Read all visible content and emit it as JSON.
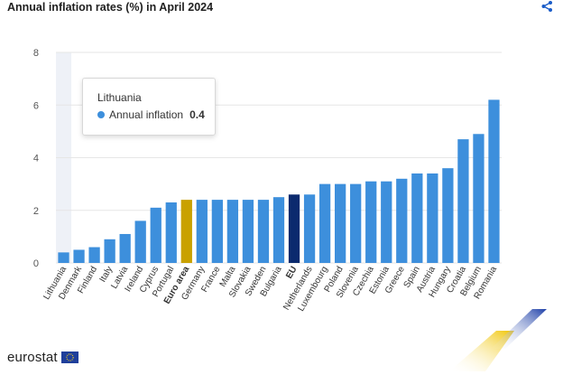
{
  "header": {
    "title": "Annual inflation rates (%) in April 2024"
  },
  "icons": {
    "share": "share-icon",
    "flag": "eu-flag-icon"
  },
  "colors": {
    "bar": "#3d8fdc",
    "euro_area": "#c9a100",
    "eu": "#0b2a6e",
    "highlight": "#eef1f7"
  },
  "tooltip": {
    "title": "Lithuania",
    "series_label": "Annual inflation",
    "value": "0.4"
  },
  "logo": {
    "text": "eurostat"
  },
  "chart_data": {
    "type": "bar",
    "title": "Annual inflation rates (%) in April 2024",
    "xlabel": "",
    "ylabel": "",
    "ylim": [
      0,
      8
    ],
    "yticks": [
      0,
      2,
      4,
      6,
      8
    ],
    "grid": true,
    "categories": [
      "Lithuania",
      "Denmark",
      "Finland",
      "Italy",
      "Latvia",
      "Ireland",
      "Cyprus",
      "Portugal",
      "Euro area",
      "Germany",
      "France",
      "Malta",
      "Slovakia",
      "Sweden",
      "Bulgaria",
      "EU",
      "Netherlands",
      "Luxembourg",
      "Poland",
      "Slovenia",
      "Czechia",
      "Estonia",
      "Greece",
      "Spain",
      "Austria",
      "Hungary",
      "Croatia",
      "Belgium",
      "Romania"
    ],
    "values": [
      0.4,
      0.5,
      0.6,
      0.9,
      1.1,
      1.6,
      2.1,
      2.3,
      2.4,
      2.4,
      2.4,
      2.4,
      2.4,
      2.4,
      2.5,
      2.6,
      2.6,
      3.0,
      3.0,
      3.0,
      3.1,
      3.1,
      3.2,
      3.4,
      3.4,
      3.6,
      4.7,
      4.9,
      6.2
    ],
    "bold_categories": [
      "Euro area",
      "EU"
    ],
    "highlighted_category": "Lithuania"
  }
}
